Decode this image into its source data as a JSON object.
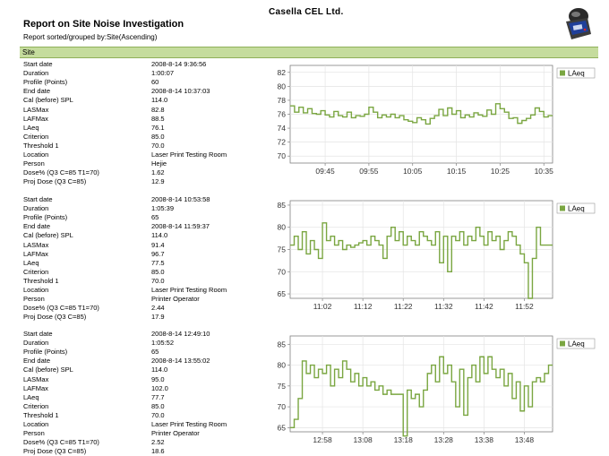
{
  "header": {
    "company": "Casella CEL Ltd.",
    "title": "Report on Site Noise Investigation",
    "subtitle": "Report sorted/grouped by:Site(Ascending)",
    "group_label": "Site"
  },
  "field_labels": [
    "Start date",
    "Duration",
    "Profile (Points)",
    "End date",
    "Cal (before) SPL",
    "LASMax",
    "LAFMax",
    "LAeq",
    "Criterion",
    "Threshold 1",
    "Location",
    "Person",
    "Dose% (Q3 C=85 T1=70)",
    "Proj Dose (Q3 C=85)"
  ],
  "records": [
    {
      "values": [
        "2008-8-14 9:36:56",
        "1:00:07",
        "60",
        "2008-8-14 10:37:03",
        "114.0",
        "82.8",
        "88.5",
        "76.1",
        "85.0",
        "70.0",
        "Laser Print Testing Room",
        "Hejie",
        "1.62",
        "12.9"
      ]
    },
    {
      "values": [
        "2008-8-14 10:53:58",
        "1:05:39",
        "65",
        "2008-8-14 11:59:37",
        "114.0",
        "91.4",
        "96.7",
        "77.5",
        "85.0",
        "70.0",
        "Laser Print Testing Room",
        "Printer Operator",
        "2.44",
        "17.9"
      ]
    },
    {
      "values": [
        "2008-8-14 12:49:10",
        "1:05:52",
        "65",
        "2008-8-14 13:55:02",
        "114.0",
        "95.0",
        "102.0",
        "77.7",
        "85.0",
        "70.0",
        "Laser Print Testing Room",
        "Printer Operator",
        "2.52",
        "18.6"
      ]
    }
  ],
  "colors": {
    "line": "#7aa641",
    "group_bar": "#c5dc9d",
    "grid": "#e4e4e4",
    "axis": "#808080"
  },
  "chart_data": [
    {
      "type": "line",
      "legend": "LAeq",
      "legend_position": "top-right",
      "grid": true,
      "ylim": [
        69,
        83
      ],
      "yticks": [
        70,
        72,
        74,
        76,
        78,
        80,
        82
      ],
      "xlim": [
        0,
        60
      ],
      "xticks": [
        {
          "pos": 8,
          "label": "09:45"
        },
        {
          "pos": 18,
          "label": "09:55"
        },
        {
          "pos": 28,
          "label": "10:05"
        },
        {
          "pos": 38,
          "label": "10:15"
        },
        {
          "pos": 48,
          "label": "10:25"
        },
        {
          "pos": 58,
          "label": "10:35"
        }
      ],
      "series": [
        {
          "name": "LAeq",
          "values": [
            77.2,
            76.3,
            77.0,
            76.2,
            76.8,
            76.1,
            76.0,
            76.5,
            75.9,
            75.6,
            76.4,
            75.8,
            75.6,
            76.3,
            75.5,
            75.8,
            75.7,
            76.0,
            77.0,
            76.3,
            75.5,
            75.9,
            75.6,
            76.0,
            75.5,
            75.8,
            75.2,
            75.0,
            74.8,
            75.5,
            75.2,
            74.6,
            75.4,
            75.8,
            76.7,
            75.8,
            76.9,
            76.0,
            76.5,
            75.5,
            75.9,
            75.6,
            76.2,
            75.9,
            75.7,
            76.6,
            76.0,
            77.5,
            76.8,
            76.3,
            75.4,
            75.5,
            74.7,
            75.1,
            75.4,
            75.9,
            76.9,
            76.4,
            75.6,
            75.8
          ]
        }
      ]
    },
    {
      "type": "line",
      "legend": "LAeq",
      "legend_position": "top-right",
      "grid": true,
      "ylim": [
        64,
        86
      ],
      "yticks": [
        65,
        70,
        75,
        80,
        85
      ],
      "xlim": [
        0,
        65
      ],
      "xticks": [
        {
          "pos": 8,
          "label": "11:02"
        },
        {
          "pos": 18,
          "label": "11:12"
        },
        {
          "pos": 28,
          "label": "11:22"
        },
        {
          "pos": 38,
          "label": "11:32"
        },
        {
          "pos": 48,
          "label": "11:42"
        },
        {
          "pos": 58,
          "label": "11:52"
        }
      ],
      "series": [
        {
          "name": "LAeq",
          "values": [
            76.0,
            78.0,
            75.0,
            79.0,
            74.0,
            77.0,
            75.0,
            73.0,
            81.0,
            77.0,
            78.0,
            76.0,
            77.0,
            75.0,
            76.0,
            75.5,
            76.0,
            76.5,
            77.0,
            76.0,
            78.0,
            77.0,
            76.0,
            73.0,
            78.0,
            80.0,
            77.0,
            79.0,
            76.0,
            78.0,
            77.0,
            76.0,
            79.0,
            78.0,
            77.0,
            76.0,
            79.0,
            72.0,
            78.0,
            70.0,
            78.0,
            77.0,
            79.0,
            76.0,
            78.0,
            77.0,
            80.0,
            78.0,
            76.0,
            79.0,
            77.0,
            78.0,
            75.0,
            77.0,
            79.0,
            78.0,
            76.0,
            74.0,
            72.0,
            64.0,
            73.0,
            80.0,
            76.0,
            76.0,
            76.0
          ]
        }
      ]
    },
    {
      "type": "line",
      "legend": "LAeq",
      "legend_position": "top-right",
      "grid": true,
      "ylim": [
        64,
        87
      ],
      "yticks": [
        65,
        70,
        75,
        80,
        85
      ],
      "xlim": [
        0,
        65
      ],
      "xticks": [
        {
          "pos": 8,
          "label": "12:58"
        },
        {
          "pos": 18,
          "label": "13:08"
        },
        {
          "pos": 28,
          "label": "13:18"
        },
        {
          "pos": 38,
          "label": "13:28"
        },
        {
          "pos": 48,
          "label": "13:38"
        },
        {
          "pos": 58,
          "label": "13:48"
        }
      ],
      "series": [
        {
          "name": "LAeq",
          "values": [
            65.0,
            67.0,
            72.0,
            81.0,
            78.0,
            80.0,
            77.0,
            79.0,
            78.0,
            80.0,
            75.0,
            79.0,
            77.0,
            81.0,
            79.0,
            76.0,
            78.0,
            75.0,
            77.0,
            75.0,
            76.0,
            74.0,
            75.0,
            73.0,
            74.0,
            73.0,
            73.0,
            73.0,
            63.0,
            74.0,
            72.0,
            73.0,
            70.0,
            74.0,
            78.0,
            80.0,
            76.0,
            82.0,
            78.0,
            80.0,
            76.0,
            70.0,
            79.0,
            68.0,
            77.0,
            80.0,
            76.0,
            82.0,
            78.0,
            82.0,
            79.0,
            77.0,
            79.0,
            75.0,
            78.0,
            72.0,
            76.0,
            69.0,
            75.0,
            70.0,
            76.0,
            77.0,
            76.0,
            78.0,
            80.0
          ]
        }
      ]
    }
  ]
}
